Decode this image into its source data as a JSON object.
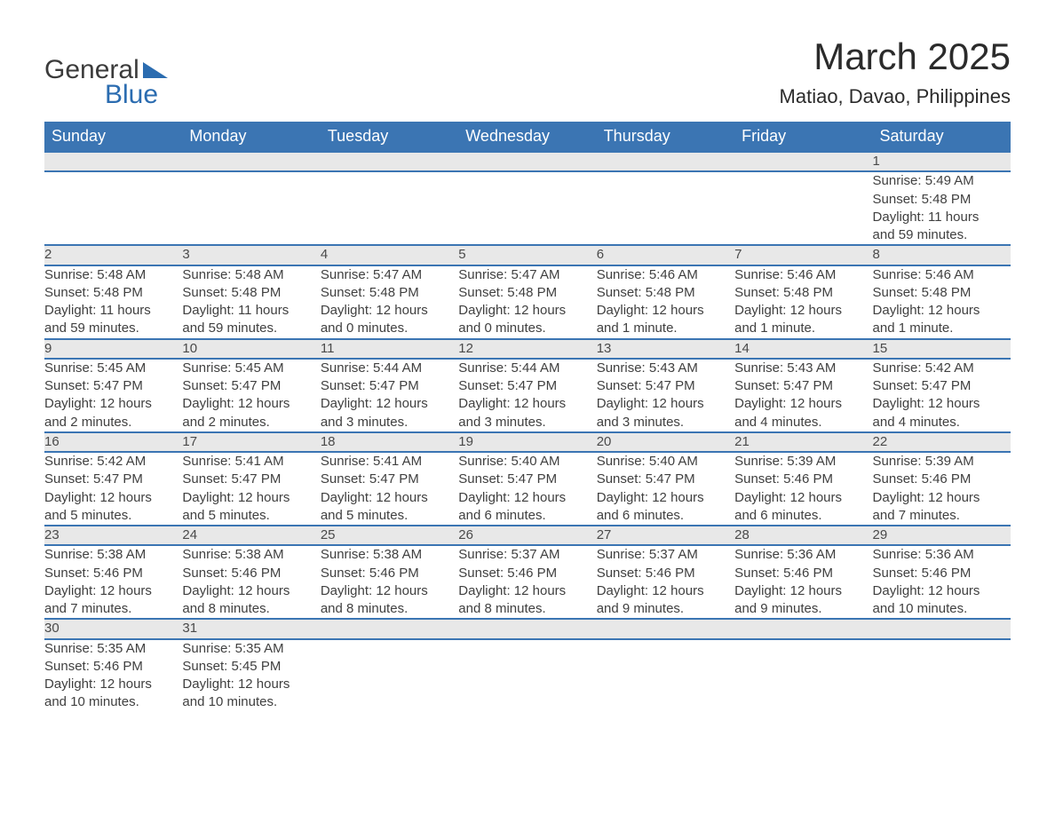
{
  "logo": {
    "general": "General",
    "blue": "Blue"
  },
  "header": {
    "title": "March 2025",
    "location": "Matiao, Davao, Philippines"
  },
  "dayNames": [
    "Sunday",
    "Monday",
    "Tuesday",
    "Wednesday",
    "Thursday",
    "Friday",
    "Saturday"
  ],
  "colors": {
    "header_bg": "#3b75b3",
    "header_text": "#ffffff",
    "day_number_bg": "#e8e8e8",
    "border": "#3b75b3",
    "text": "#404040",
    "logo_blue": "#2b6cb0"
  },
  "weeks": [
    {
      "numbers": [
        "",
        "",
        "",
        "",
        "",
        "",
        "1"
      ],
      "cells": [
        null,
        null,
        null,
        null,
        null,
        null,
        {
          "sunrise": "Sunrise: 5:49 AM",
          "sunset": "Sunset: 5:48 PM",
          "daylight1": "Daylight: 11 hours",
          "daylight2": "and 59 minutes."
        }
      ]
    },
    {
      "numbers": [
        "2",
        "3",
        "4",
        "5",
        "6",
        "7",
        "8"
      ],
      "cells": [
        {
          "sunrise": "Sunrise: 5:48 AM",
          "sunset": "Sunset: 5:48 PM",
          "daylight1": "Daylight: 11 hours",
          "daylight2": "and 59 minutes."
        },
        {
          "sunrise": "Sunrise: 5:48 AM",
          "sunset": "Sunset: 5:48 PM",
          "daylight1": "Daylight: 11 hours",
          "daylight2": "and 59 minutes."
        },
        {
          "sunrise": "Sunrise: 5:47 AM",
          "sunset": "Sunset: 5:48 PM",
          "daylight1": "Daylight: 12 hours",
          "daylight2": "and 0 minutes."
        },
        {
          "sunrise": "Sunrise: 5:47 AM",
          "sunset": "Sunset: 5:48 PM",
          "daylight1": "Daylight: 12 hours",
          "daylight2": "and 0 minutes."
        },
        {
          "sunrise": "Sunrise: 5:46 AM",
          "sunset": "Sunset: 5:48 PM",
          "daylight1": "Daylight: 12 hours",
          "daylight2": "and 1 minute."
        },
        {
          "sunrise": "Sunrise: 5:46 AM",
          "sunset": "Sunset: 5:48 PM",
          "daylight1": "Daylight: 12 hours",
          "daylight2": "and 1 minute."
        },
        {
          "sunrise": "Sunrise: 5:46 AM",
          "sunset": "Sunset: 5:48 PM",
          "daylight1": "Daylight: 12 hours",
          "daylight2": "and 1 minute."
        }
      ]
    },
    {
      "numbers": [
        "9",
        "10",
        "11",
        "12",
        "13",
        "14",
        "15"
      ],
      "cells": [
        {
          "sunrise": "Sunrise: 5:45 AM",
          "sunset": "Sunset: 5:47 PM",
          "daylight1": "Daylight: 12 hours",
          "daylight2": "and 2 minutes."
        },
        {
          "sunrise": "Sunrise: 5:45 AM",
          "sunset": "Sunset: 5:47 PM",
          "daylight1": "Daylight: 12 hours",
          "daylight2": "and 2 minutes."
        },
        {
          "sunrise": "Sunrise: 5:44 AM",
          "sunset": "Sunset: 5:47 PM",
          "daylight1": "Daylight: 12 hours",
          "daylight2": "and 3 minutes."
        },
        {
          "sunrise": "Sunrise: 5:44 AM",
          "sunset": "Sunset: 5:47 PM",
          "daylight1": "Daylight: 12 hours",
          "daylight2": "and 3 minutes."
        },
        {
          "sunrise": "Sunrise: 5:43 AM",
          "sunset": "Sunset: 5:47 PM",
          "daylight1": "Daylight: 12 hours",
          "daylight2": "and 3 minutes."
        },
        {
          "sunrise": "Sunrise: 5:43 AM",
          "sunset": "Sunset: 5:47 PM",
          "daylight1": "Daylight: 12 hours",
          "daylight2": "and 4 minutes."
        },
        {
          "sunrise": "Sunrise: 5:42 AM",
          "sunset": "Sunset: 5:47 PM",
          "daylight1": "Daylight: 12 hours",
          "daylight2": "and 4 minutes."
        }
      ]
    },
    {
      "numbers": [
        "16",
        "17",
        "18",
        "19",
        "20",
        "21",
        "22"
      ],
      "cells": [
        {
          "sunrise": "Sunrise: 5:42 AM",
          "sunset": "Sunset: 5:47 PM",
          "daylight1": "Daylight: 12 hours",
          "daylight2": "and 5 minutes."
        },
        {
          "sunrise": "Sunrise: 5:41 AM",
          "sunset": "Sunset: 5:47 PM",
          "daylight1": "Daylight: 12 hours",
          "daylight2": "and 5 minutes."
        },
        {
          "sunrise": "Sunrise: 5:41 AM",
          "sunset": "Sunset: 5:47 PM",
          "daylight1": "Daylight: 12 hours",
          "daylight2": "and 5 minutes."
        },
        {
          "sunrise": "Sunrise: 5:40 AM",
          "sunset": "Sunset: 5:47 PM",
          "daylight1": "Daylight: 12 hours",
          "daylight2": "and 6 minutes."
        },
        {
          "sunrise": "Sunrise: 5:40 AM",
          "sunset": "Sunset: 5:47 PM",
          "daylight1": "Daylight: 12 hours",
          "daylight2": "and 6 minutes."
        },
        {
          "sunrise": "Sunrise: 5:39 AM",
          "sunset": "Sunset: 5:46 PM",
          "daylight1": "Daylight: 12 hours",
          "daylight2": "and 6 minutes."
        },
        {
          "sunrise": "Sunrise: 5:39 AM",
          "sunset": "Sunset: 5:46 PM",
          "daylight1": "Daylight: 12 hours",
          "daylight2": "and 7 minutes."
        }
      ]
    },
    {
      "numbers": [
        "23",
        "24",
        "25",
        "26",
        "27",
        "28",
        "29"
      ],
      "cells": [
        {
          "sunrise": "Sunrise: 5:38 AM",
          "sunset": "Sunset: 5:46 PM",
          "daylight1": "Daylight: 12 hours",
          "daylight2": "and 7 minutes."
        },
        {
          "sunrise": "Sunrise: 5:38 AM",
          "sunset": "Sunset: 5:46 PM",
          "daylight1": "Daylight: 12 hours",
          "daylight2": "and 8 minutes."
        },
        {
          "sunrise": "Sunrise: 5:38 AM",
          "sunset": "Sunset: 5:46 PM",
          "daylight1": "Daylight: 12 hours",
          "daylight2": "and 8 minutes."
        },
        {
          "sunrise": "Sunrise: 5:37 AM",
          "sunset": "Sunset: 5:46 PM",
          "daylight1": "Daylight: 12 hours",
          "daylight2": "and 8 minutes."
        },
        {
          "sunrise": "Sunrise: 5:37 AM",
          "sunset": "Sunset: 5:46 PM",
          "daylight1": "Daylight: 12 hours",
          "daylight2": "and 9 minutes."
        },
        {
          "sunrise": "Sunrise: 5:36 AM",
          "sunset": "Sunset: 5:46 PM",
          "daylight1": "Daylight: 12 hours",
          "daylight2": "and 9 minutes."
        },
        {
          "sunrise": "Sunrise: 5:36 AM",
          "sunset": "Sunset: 5:46 PM",
          "daylight1": "Daylight: 12 hours",
          "daylight2": "and 10 minutes."
        }
      ]
    },
    {
      "numbers": [
        "30",
        "31",
        "",
        "",
        "",
        "",
        ""
      ],
      "cells": [
        {
          "sunrise": "Sunrise: 5:35 AM",
          "sunset": "Sunset: 5:46 PM",
          "daylight1": "Daylight: 12 hours",
          "daylight2": "and 10 minutes."
        },
        {
          "sunrise": "Sunrise: 5:35 AM",
          "sunset": "Sunset: 5:45 PM",
          "daylight1": "Daylight: 12 hours",
          "daylight2": "and 10 minutes."
        },
        null,
        null,
        null,
        null,
        null
      ]
    }
  ]
}
